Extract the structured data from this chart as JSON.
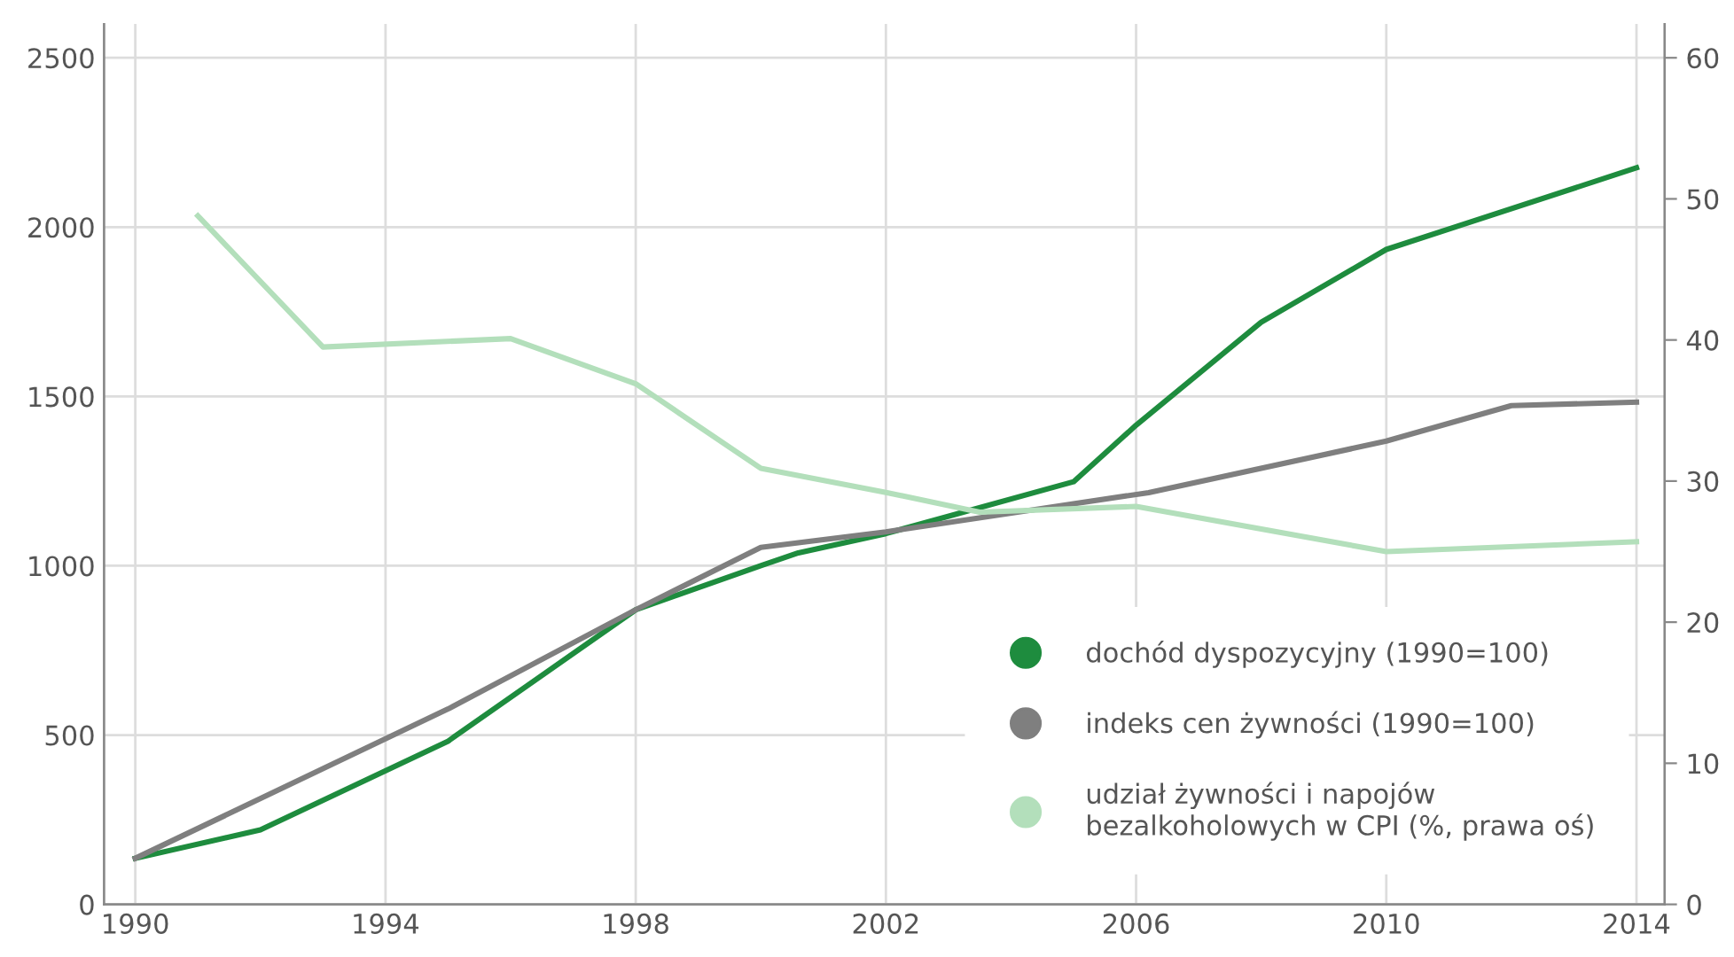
{
  "chart_data": {
    "type": "line",
    "xlim": [
      1989.5,
      2014.45
    ],
    "xticks": [
      1990,
      1994,
      1998,
      2002,
      2006,
      2010,
      2014
    ],
    "ylim": [
      0,
      2600
    ],
    "yticks": [
      0,
      500,
      1000,
      1500,
      2000,
      2500
    ],
    "y2lim": [
      0,
      62.4
    ],
    "y2ticks": [
      0,
      10,
      20,
      30,
      40,
      50,
      60
    ],
    "grid": true,
    "legend": "bottom right",
    "marker": "none",
    "line_style": "solid",
    "series": [
      {
        "name": "dochód dyspozycyjny (1990=100)",
        "color": "#1e8c3e",
        "x": [
          1990,
          1992,
          1995,
          1998,
          2000,
          2000.6,
          2002,
          2005,
          2006,
          2008,
          2010,
          2014
        ],
        "values": [
          136,
          220,
          482,
          870,
          1000,
          1038,
          1095,
          1248,
          1415,
          1719,
          1934,
          2175
        ]
      },
      {
        "name": "indeks cen żywności (1990=100)",
        "color": "#7f7f7f",
        "x": [
          1990,
          1995,
          1998,
          2000,
          2002,
          2006.2,
          2010,
          2012,
          2014
        ],
        "values": [
          136,
          577,
          870,
          1054,
          1100,
          1216,
          1368,
          1473,
          1483
        ]
      },
      {
        "name": "udział żywności i napojów\nbezalkoholowych w CPI (%, prawa oś)",
        "color": "#b3dfbb",
        "axis": "y2",
        "x": [
          1991,
          1993,
          1996,
          1998,
          2000,
          2002,
          2003.5,
          2006,
          2010,
          2014
        ],
        "values": [
          48.8,
          39.5,
          40.1,
          36.9,
          30.9,
          29.2,
          27.8,
          28.2,
          25.0,
          25.7
        ]
      }
    ]
  }
}
